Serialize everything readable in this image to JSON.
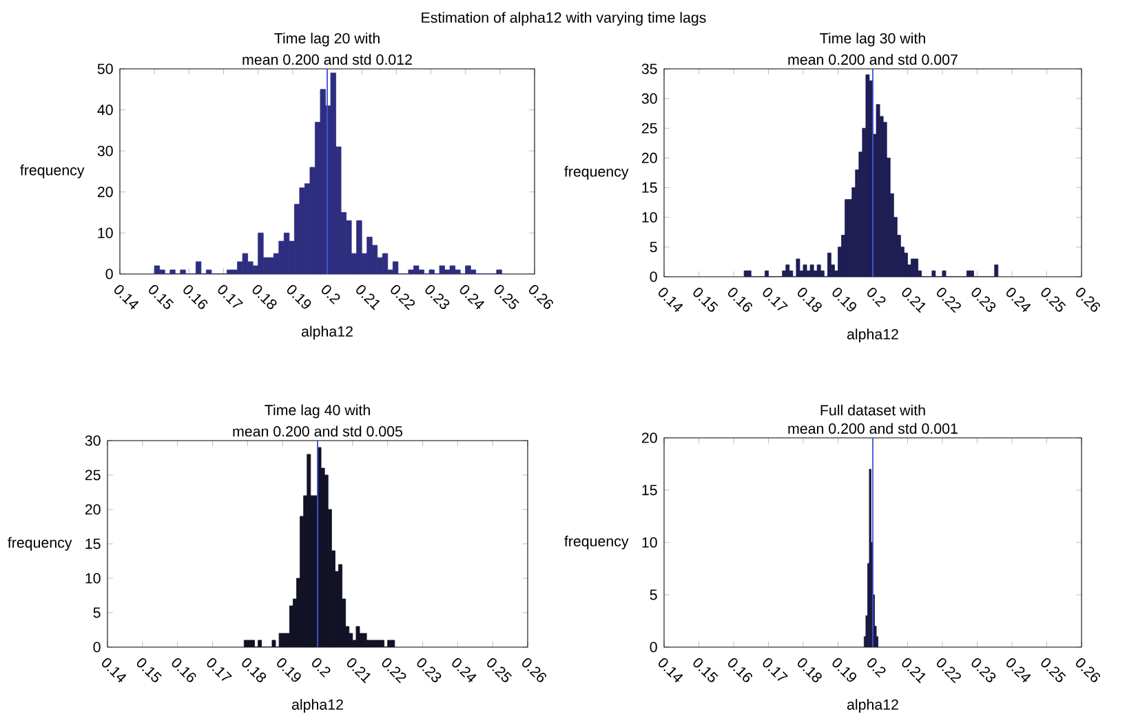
{
  "chart_data": [
    {
      "type": "histogram",
      "title": "Time lag 20 with",
      "subtitle": "mean 0.200 and std 0.012",
      "xlabel": "alpha12",
      "ylabel": "frequency",
      "color": "#2e2e80",
      "annotations": [
        "Estimation of alpha12 with varying time lags"
      ],
      "bins": [
        0.15,
        0.1515,
        0.153,
        0.1545,
        0.156,
        0.1575,
        0.159,
        0.1605,
        0.162,
        0.1635,
        0.165,
        0.1665,
        0.168,
        0.1695,
        0.171,
        0.1725,
        0.174,
        0.1755,
        0.177,
        0.1785,
        0.18,
        0.1815,
        0.183,
        0.1845,
        0.186,
        0.1875,
        0.189,
        0.1905,
        0.192,
        0.1935,
        0.195,
        0.1965,
        0.198,
        0.1995,
        0.201,
        0.2025,
        0.204,
        0.2055,
        0.207,
        0.2085,
        0.21,
        0.2115,
        0.213,
        0.2145,
        0.216,
        0.2175,
        0.219,
        0.2205,
        0.222,
        0.2235,
        0.225,
        0.2265,
        0.228,
        0.2295,
        0.231,
        0.2325,
        0.234,
        0.2355,
        0.237,
        0.2385,
        0.24,
        0.2415,
        0.243,
        0.2445,
        0.246,
        0.2475,
        0.249,
        0.2505
      ],
      "values": [
        2,
        1,
        0,
        1,
        0,
        1,
        0,
        0,
        3,
        0,
        1,
        0,
        0,
        0,
        1,
        1,
        3,
        5,
        3,
        2,
        10,
        4,
        4,
        5,
        8,
        10,
        8,
        17,
        21,
        22,
        26,
        37,
        45,
        41,
        49,
        31,
        15,
        13,
        5,
        13,
        5,
        9,
        7,
        4,
        5,
        1,
        3,
        0,
        0,
        1,
        2,
        1,
        0,
        1,
        0,
        2,
        1,
        2,
        1,
        0,
        2,
        1,
        0,
        0,
        0,
        0,
        1
      ],
      "xlim": [
        0.14,
        0.26
      ],
      "xticks": [
        0.14,
        0.15,
        0.16,
        0.17,
        0.18,
        0.19,
        0.2,
        0.21,
        0.22,
        0.23,
        0.24,
        0.25,
        0.26
      ],
      "ylim": [
        0,
        50
      ],
      "yticks": [
        0,
        10,
        20,
        30,
        40,
        50
      ],
      "ref_lines": [
        {
          "axis": "x",
          "value": 0.2,
          "color": "#3f55d8"
        }
      ]
    },
    {
      "type": "histogram",
      "title": "Time lag 30 with",
      "subtitle": "mean 0.200 and std 0.007",
      "xlabel": "alpha12",
      "ylabel": "frequency",
      "color": "#1e1e55",
      "bins": [
        0.163,
        0.164,
        0.165,
        0.166,
        0.167,
        0.168,
        0.169,
        0.17,
        0.171,
        0.172,
        0.173,
        0.174,
        0.175,
        0.176,
        0.177,
        0.178,
        0.179,
        0.18,
        0.181,
        0.182,
        0.183,
        0.184,
        0.185,
        0.186,
        0.187,
        0.188,
        0.189,
        0.19,
        0.191,
        0.192,
        0.193,
        0.194,
        0.195,
        0.196,
        0.197,
        0.198,
        0.199,
        0.2,
        0.201,
        0.202,
        0.203,
        0.204,
        0.205,
        0.206,
        0.207,
        0.208,
        0.209,
        0.21,
        0.211,
        0.212,
        0.213,
        0.214,
        0.215,
        0.216,
        0.217,
        0.218,
        0.219,
        0.22,
        0.221,
        0.222,
        0.223,
        0.224,
        0.225,
        0.226,
        0.227,
        0.228,
        0.229,
        0.23,
        0.231,
        0.232,
        0.233,
        0.234,
        0.235,
        0.236
      ],
      "values": [
        1,
        1,
        0,
        0,
        0,
        0,
        1,
        0,
        0,
        0,
        0,
        1,
        2,
        1,
        0,
        3,
        1,
        2,
        1,
        2,
        1,
        2,
        1,
        0,
        4,
        2,
        1,
        5,
        7,
        13,
        13,
        15,
        18,
        21,
        25,
        34,
        33,
        24,
        29,
        27,
        26,
        20,
        14,
        10,
        7,
        5,
        4,
        2,
        3,
        3,
        1,
        0,
        0,
        0,
        1,
        0,
        0,
        1,
        0,
        0,
        0,
        0,
        0,
        0,
        1,
        1,
        0,
        0,
        0,
        0,
        0,
        0,
        2
      ],
      "xlim": [
        0.14,
        0.26
      ],
      "xticks": [
        0.14,
        0.15,
        0.16,
        0.17,
        0.18,
        0.19,
        0.2,
        0.21,
        0.22,
        0.23,
        0.24,
        0.25,
        0.26
      ],
      "ylim": [
        0,
        35
      ],
      "yticks": [
        0,
        5,
        10,
        15,
        20,
        25,
        30,
        35
      ],
      "ref_lines": [
        {
          "axis": "x",
          "value": 0.2,
          "color": "#3f55d8"
        }
      ]
    },
    {
      "type": "histogram",
      "title": "Time lag 40 with",
      "subtitle": "mean 0.200 and std 0.005",
      "xlabel": "alpha12",
      "ylabel": "frequency",
      "color": "#121226",
      "bins": [
        0.179,
        0.18,
        0.181,
        0.182,
        0.183,
        0.184,
        0.185,
        0.186,
        0.187,
        0.188,
        0.189,
        0.19,
        0.191,
        0.192,
        0.193,
        0.194,
        0.195,
        0.196,
        0.197,
        0.198,
        0.199,
        0.2,
        0.201,
        0.202,
        0.203,
        0.204,
        0.205,
        0.206,
        0.207,
        0.208,
        0.209,
        0.21,
        0.211,
        0.212,
        0.213,
        0.214,
        0.215,
        0.216,
        0.217,
        0.218,
        0.219,
        0.22,
        0.221,
        0.222
      ],
      "values": [
        1,
        1,
        1,
        0,
        1,
        0,
        0,
        0,
        1,
        0,
        2,
        2,
        2,
        6,
        7,
        10,
        19,
        22,
        28,
        22,
        22,
        29,
        26,
        25,
        20,
        14,
        11,
        12,
        7,
        3,
        2,
        1,
        3,
        2,
        2,
        1,
        1,
        1,
        1,
        1,
        0,
        1,
        1
      ],
      "xlim": [
        0.14,
        0.26
      ],
      "xticks": [
        0.14,
        0.15,
        0.16,
        0.17,
        0.18,
        0.19,
        0.2,
        0.21,
        0.22,
        0.23,
        0.24,
        0.25,
        0.26
      ],
      "ylim": [
        0,
        30
      ],
      "yticks": [
        0,
        5,
        10,
        15,
        20,
        25,
        30
      ],
      "ref_lines": [
        {
          "axis": "x",
          "value": 0.2,
          "color": "#3f55d8"
        }
      ]
    },
    {
      "type": "histogram",
      "title": "Full dataset with",
      "subtitle": "mean 0.200 and std 0.001",
      "xlabel": "alpha12",
      "ylabel": "frequency",
      "color": "#1a1a40",
      "bins": [
        0.1975,
        0.198,
        0.1985,
        0.199,
        0.1995,
        0.2,
        0.2005,
        0.201,
        0.2015
      ],
      "values": [
        1,
        3,
        8,
        17,
        10,
        5,
        2,
        1
      ],
      "xlim": [
        0.14,
        0.26
      ],
      "xticks": [
        0.14,
        0.15,
        0.16,
        0.17,
        0.18,
        0.19,
        0.2,
        0.21,
        0.22,
        0.23,
        0.24,
        0.25,
        0.26
      ],
      "ylim": [
        0,
        20
      ],
      "yticks": [
        0,
        5,
        10,
        15,
        20
      ],
      "ref_lines": [
        {
          "axis": "x",
          "value": 0.2,
          "color": "#3f55d8"
        }
      ]
    }
  ]
}
